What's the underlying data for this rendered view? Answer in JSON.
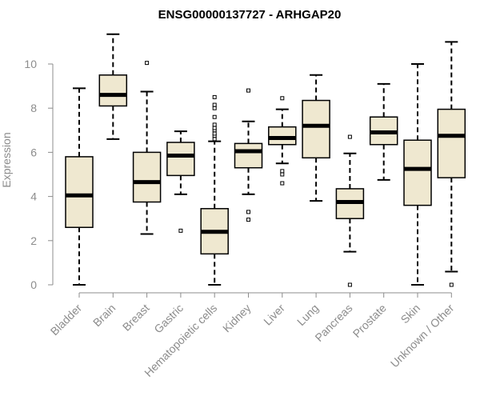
{
  "chart_data": {
    "type": "boxplot",
    "title": "ENSG00000137727 - ARHGAP20",
    "xlabel": "",
    "ylabel": "Expression",
    "ylim": [
      0,
      11.4
    ],
    "yticks": [
      0,
      2,
      4,
      6,
      8,
      10
    ],
    "grid": false,
    "legend": "none",
    "categories": [
      "Bladder",
      "Brain",
      "Breast",
      "Gastric",
      "Hematopoietic cells",
      "Kidney",
      "Liver",
      "Lung",
      "Pancreas",
      "Prostate",
      "Skin",
      "Unknown / Other"
    ],
    "boxes": [
      {
        "category": "Bladder",
        "whisker_low": 0.0,
        "q1": 2.6,
        "median": 4.05,
        "q3": 5.8,
        "whisker_high": 8.9,
        "outliers": []
      },
      {
        "category": "Brain",
        "whisker_low": 6.6,
        "q1": 8.1,
        "median": 8.6,
        "q3": 9.5,
        "whisker_high": 11.35,
        "outliers": []
      },
      {
        "category": "Breast",
        "whisker_low": 2.3,
        "q1": 3.75,
        "median": 4.65,
        "q3": 6.0,
        "whisker_high": 8.75,
        "outliers": [
          10.05
        ]
      },
      {
        "category": "Gastric",
        "whisker_low": 4.1,
        "q1": 4.95,
        "median": 5.85,
        "q3": 6.45,
        "whisker_high": 6.95,
        "outliers": [
          2.45
        ]
      },
      {
        "category": "Hematopoietic cells",
        "whisker_low": 0.0,
        "q1": 1.4,
        "median": 2.4,
        "q3": 3.45,
        "whisker_high": 6.5,
        "outliers": [
          6.6,
          6.75,
          6.85,
          7.0,
          7.1,
          7.25,
          7.6,
          8.0,
          8.15,
          8.5
        ]
      },
      {
        "category": "Kidney",
        "whisker_low": 4.1,
        "q1": 5.3,
        "median": 6.05,
        "q3": 6.4,
        "whisker_high": 7.4,
        "outliers": [
          2.95,
          3.3,
          8.8
        ]
      },
      {
        "category": "Liver",
        "whisker_low": 5.5,
        "q1": 6.35,
        "median": 6.65,
        "q3": 7.15,
        "whisker_high": 7.95,
        "outliers": [
          4.6,
          5.0,
          5.15,
          8.45
        ]
      },
      {
        "category": "Lung",
        "whisker_low": 3.8,
        "q1": 5.75,
        "median": 7.2,
        "q3": 8.35,
        "whisker_high": 9.5,
        "outliers": []
      },
      {
        "category": "Pancreas",
        "whisker_low": 1.5,
        "q1": 3.0,
        "median": 3.75,
        "q3": 4.35,
        "whisker_high": 5.95,
        "outliers": [
          0.0,
          6.7
        ]
      },
      {
        "category": "Prostate",
        "whisker_low": 4.75,
        "q1": 6.35,
        "median": 6.9,
        "q3": 7.6,
        "whisker_high": 9.1,
        "outliers": []
      },
      {
        "category": "Skin",
        "whisker_low": 0.0,
        "q1": 3.6,
        "median": 5.25,
        "q3": 6.55,
        "whisker_high": 10.0,
        "outliers": []
      },
      {
        "category": "Unknown / Other",
        "whisker_low": 0.6,
        "q1": 4.85,
        "median": 6.75,
        "q3": 7.95,
        "whisker_high": 11.0,
        "outliers": [
          0.0
        ]
      }
    ],
    "colors": {
      "box_fill": "#efe8d0",
      "box_stroke": "#000000",
      "median": "#000000",
      "axis": "#8c8c8c",
      "tick_label": "#8c8c8c"
    }
  }
}
